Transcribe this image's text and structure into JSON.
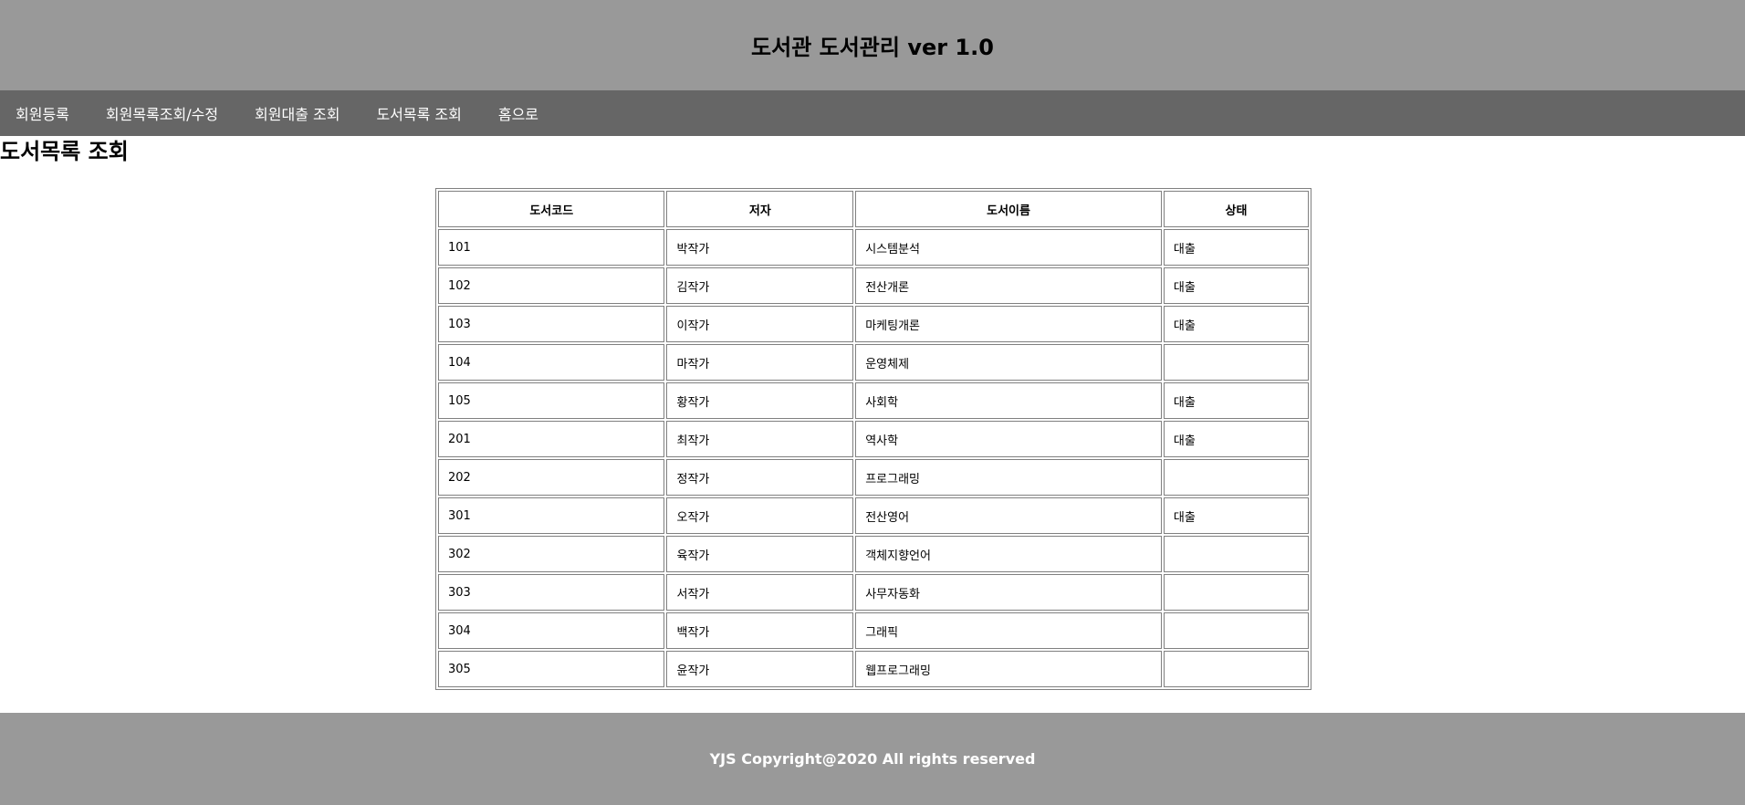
{
  "header": {
    "title": "도서관 도서관리 ver 1.0"
  },
  "nav": {
    "items": [
      "회원등록",
      "회원목록조회/수정",
      "회원대출 조회",
      "도서목록 조회",
      "홈으로"
    ]
  },
  "page_title": "도서목록 조회",
  "table": {
    "headers": [
      "도서코드",
      "저자",
      "도서이름",
      "상태"
    ],
    "rows": [
      [
        "101",
        "박작가",
        "시스템분석",
        "대출"
      ],
      [
        "102",
        "김작가",
        "전산개론",
        "대출"
      ],
      [
        "103",
        "이작가",
        "마케팅개론",
        "대출"
      ],
      [
        "104",
        "마작가",
        "운영체제",
        ""
      ],
      [
        "105",
        "황작가",
        "사회학",
        "대출"
      ],
      [
        "201",
        "최작가",
        "역사학",
        "대출"
      ],
      [
        "202",
        "정작가",
        "프로그래밍",
        ""
      ],
      [
        "301",
        "오작가",
        "전산영어",
        "대출"
      ],
      [
        "302",
        "육작가",
        "객체지향언어",
        ""
      ],
      [
        "303",
        "서작가",
        "사무자동화",
        ""
      ],
      [
        "304",
        "백작가",
        "그래픽",
        ""
      ],
      [
        "305",
        "윤작가",
        "웹프로그래밍",
        ""
      ]
    ]
  },
  "footer": {
    "text": "YJS Copyright@2020 All rights reserved"
  }
}
